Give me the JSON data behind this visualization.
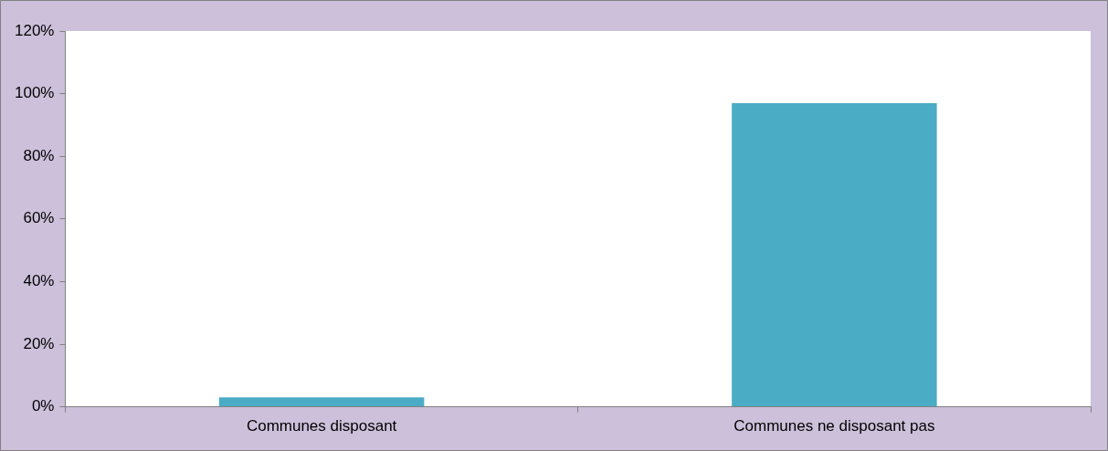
{
  "chart_data": {
    "type": "bar",
    "categories": [
      "Communes disposant",
      "Communes ne disposant pas"
    ],
    "values": [
      3,
      97
    ],
    "color": "#4bacc6",
    "ylim": [
      0,
      120
    ],
    "yticks": [
      {
        "value": 0,
        "label": "0%"
      },
      {
        "value": 20,
        "label": "20%"
      },
      {
        "value": 40,
        "label": "40%"
      },
      {
        "value": 60,
        "label": "60%"
      },
      {
        "value": 80,
        "label": "80%"
      },
      {
        "value": 100,
        "label": "100%"
      },
      {
        "value": 120,
        "label": "120%"
      }
    ],
    "grid": false,
    "legend": false
  }
}
